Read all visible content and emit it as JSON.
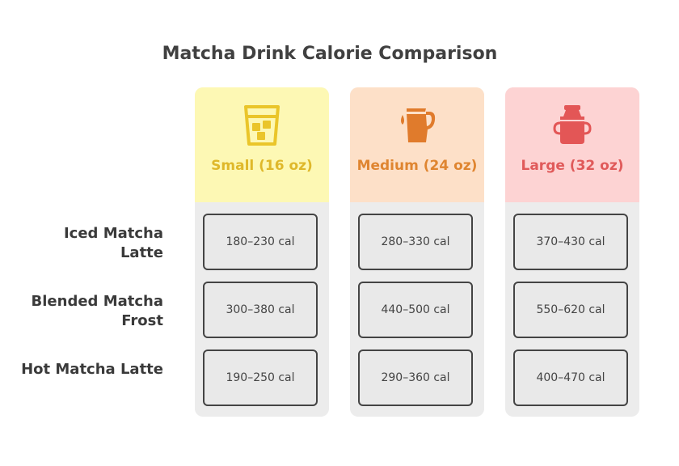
{
  "title": "Matcha Drink Calorie Comparison",
  "colors": {
    "small_bg": "#fdf8b4",
    "small_text": "#dfb82a",
    "small_icon": "#eac52a",
    "medium_bg": "#fde0c8",
    "medium_text": "#df8530",
    "medium_icon": "#e07b2c",
    "large_bg": "#fdd3d3",
    "large_text": "#e05a5a",
    "large_icon": "#e35656"
  },
  "columns": [
    {
      "label": "Small (16 oz)",
      "icon": "iced-glass-icon"
    },
    {
      "label": "Medium (24 oz)",
      "icon": "pitcher-icon"
    },
    {
      "label": "Large (32 oz)",
      "icon": "milk-can-icon"
    }
  ],
  "rows": [
    {
      "label": "Iced Matcha Latte",
      "values": [
        "180–230 cal",
        "280–330 cal",
        "370–430 cal"
      ]
    },
    {
      "label": "Blended Matcha Frost",
      "values": [
        "300–380 cal",
        "440–500 cal",
        "550–620 cal"
      ]
    },
    {
      "label": "Hot Matcha Latte",
      "values": [
        "190–250 cal",
        "290–360 cal",
        "400–470 cal"
      ]
    }
  ]
}
